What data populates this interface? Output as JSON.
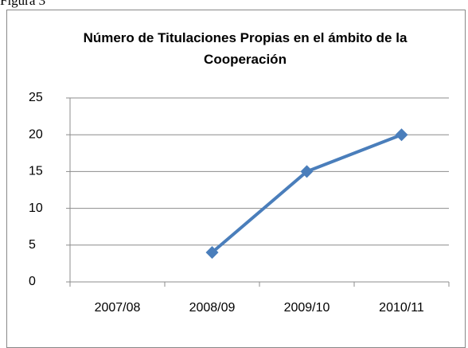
{
  "caption": "Figura 3",
  "chart_data": {
    "type": "line",
    "title": "Número de Titulaciones Propias en el ámbito de la Cooperación",
    "categories": [
      "2007/08",
      "2008/09",
      "2009/10",
      "2010/11"
    ],
    "series": [
      {
        "color": "#4a7ebb",
        "values": [
          null,
          4,
          15,
          20
        ]
      }
    ],
    "ylim": [
      0,
      25
    ],
    "yticks": [
      0,
      5,
      10,
      15,
      20,
      25
    ],
    "grid": true
  }
}
